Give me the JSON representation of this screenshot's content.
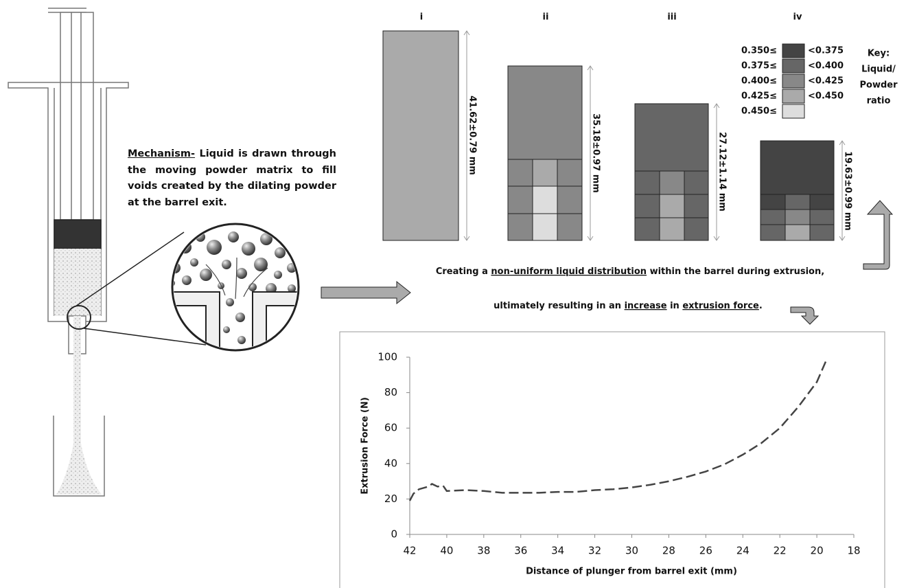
{
  "mechanism": {
    "label": "Mechanism-",
    "text": "Liquid is drawn through the moving powder matrix to fill voids created by the dilating powder at the barrel exit."
  },
  "columns": [
    {
      "label": "i",
      "dimension": "41.62±0.79 mm"
    },
    {
      "label": "ii",
      "dimension": "35.18±0.97 mm"
    },
    {
      "label": "iii",
      "dimension": "27.12±1.14 mm"
    },
    {
      "label": "iv",
      "dimension": "19.63±0.99 mm"
    }
  ],
  "key": {
    "title": [
      "Key:",
      "Liquid/",
      "Powder",
      "ratio"
    ],
    "rows": [
      {
        "lower": "0.350≤",
        "upper": "<0.375"
      },
      {
        "lower": "0.375≤",
        "upper": "<0.400"
      },
      {
        "lower": "0.400≤",
        "upper": "<0.425"
      },
      {
        "lower": "0.425≤",
        "upper": "<0.450"
      },
      {
        "lower": "0.450≤"
      }
    ]
  },
  "caption": {
    "line1": [
      "Creating a ",
      "non-uniform liquid distribution",
      " within the barrel during extrusion,"
    ],
    "line2": [
      "ultimately resulting in an ",
      "increase",
      " in ",
      "extrusion force",
      "."
    ]
  },
  "chart_data": {
    "type": "line",
    "xlabel": "Distance of plunger from barrel exit (mm)",
    "ylabel": "Extrusion Force (N)",
    "x": [
      42,
      41.8,
      41.5,
      41,
      40.8,
      40.5,
      40.2,
      40,
      39,
      38,
      37,
      36,
      35,
      34,
      33,
      32,
      31,
      30,
      29,
      28,
      27,
      26,
      25,
      24,
      23,
      22,
      21,
      20,
      19.5
    ],
    "values": [
      19,
      23,
      25.5,
      27,
      28.5,
      27,
      27.5,
      24.5,
      25,
      24.5,
      23.5,
      23.5,
      23.5,
      24,
      24,
      25,
      25.5,
      26.5,
      28,
      30,
      32.5,
      35.5,
      39.5,
      45,
      51.5,
      60,
      72,
      86,
      98
    ],
    "color": "#444444",
    "xlim": [
      42,
      18
    ],
    "xticks": [
      42,
      40,
      38,
      36,
      34,
      32,
      30,
      28,
      26,
      24,
      22,
      20,
      18
    ],
    "ylim": [
      0,
      100
    ],
    "yticks": [
      0,
      20,
      40,
      60,
      80,
      100
    ]
  }
}
